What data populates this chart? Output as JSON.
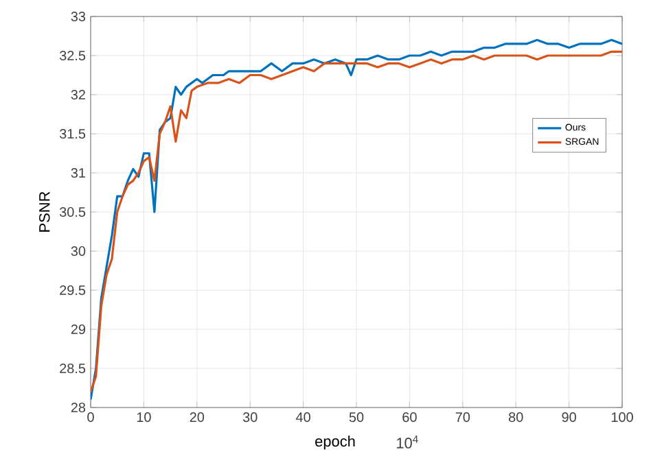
{
  "chart_data": {
    "type": "line",
    "xlabel": "epoch",
    "ylabel": "PSNR",
    "annotations": [
      "10$^{4}$"
    ],
    "xlim": [
      0,
      100
    ],
    "ylim": [
      28,
      33
    ],
    "xticks": [
      0,
      10,
      20,
      30,
      40,
      50,
      60,
      70,
      80,
      90,
      100
    ],
    "yticks": [
      28,
      28.5,
      29,
      29.5,
      30,
      30.5,
      31,
      31.5,
      32,
      32.5,
      33
    ],
    "grid": true,
    "legend": "right",
    "line_style": "solid",
    "marker": "none",
    "series": [
      {
        "name": "Ours",
        "color": "#0072bd",
        "x": [
          0,
          1,
          2,
          3,
          4,
          5,
          6,
          7,
          8,
          9,
          10,
          11,
          12,
          13,
          14,
          15,
          16,
          17,
          18,
          19,
          20,
          21,
          22,
          23,
          24,
          25,
          26,
          28,
          30,
          32,
          34,
          36,
          38,
          40,
          42,
          44,
          46,
          48,
          49,
          50,
          52,
          54,
          56,
          58,
          60,
          62,
          64,
          66,
          68,
          70,
          72,
          74,
          76,
          78,
          80,
          82,
          84,
          86,
          88,
          90,
          92,
          94,
          96,
          98,
          100
        ],
        "values": [
          28.1,
          28.5,
          29.4,
          29.8,
          30.2,
          30.7,
          30.7,
          30.9,
          31.05,
          30.95,
          31.25,
          31.25,
          30.5,
          31.55,
          31.65,
          31.7,
          32.1,
          32.0,
          32.1,
          32.15,
          32.2,
          32.15,
          32.2,
          32.25,
          32.25,
          32.25,
          32.3,
          32.3,
          32.3,
          32.3,
          32.4,
          32.3,
          32.4,
          32.4,
          32.45,
          32.4,
          32.45,
          32.4,
          32.25,
          32.45,
          32.45,
          32.5,
          32.45,
          32.45,
          32.5,
          32.5,
          32.55,
          32.5,
          32.55,
          32.55,
          32.55,
          32.6,
          32.6,
          32.65,
          32.65,
          32.65,
          32.7,
          32.65,
          32.65,
          32.6,
          32.65,
          32.65,
          32.65,
          32.7,
          32.65
        ]
      },
      {
        "name": "SRGAN",
        "color": "#d95319",
        "x": [
          0,
          1,
          2,
          3,
          4,
          5,
          6,
          7,
          8,
          9,
          10,
          11,
          12,
          13,
          14,
          15,
          16,
          17,
          18,
          19,
          20,
          22,
          24,
          26,
          28,
          30,
          32,
          34,
          36,
          38,
          40,
          42,
          44,
          46,
          48,
          50,
          52,
          54,
          56,
          58,
          60,
          62,
          64,
          66,
          68,
          70,
          72,
          74,
          76,
          78,
          80,
          82,
          84,
          86,
          88,
          90,
          92,
          94,
          96,
          98,
          100
        ],
        "values": [
          28.2,
          28.4,
          29.3,
          29.7,
          29.9,
          30.5,
          30.7,
          30.85,
          30.9,
          31.0,
          31.15,
          31.2,
          30.9,
          31.5,
          31.65,
          31.85,
          31.4,
          31.8,
          31.7,
          32.05,
          32.1,
          32.15,
          32.15,
          32.2,
          32.15,
          32.25,
          32.25,
          32.2,
          32.25,
          32.3,
          32.35,
          32.3,
          32.4,
          32.4,
          32.4,
          32.4,
          32.4,
          32.35,
          32.4,
          32.4,
          32.35,
          32.4,
          32.45,
          32.4,
          32.45,
          32.45,
          32.5,
          32.45,
          32.5,
          32.5,
          32.5,
          32.5,
          32.45,
          32.5,
          32.5,
          32.5,
          32.5,
          32.5,
          32.5,
          32.55,
          32.55
        ]
      }
    ]
  }
}
